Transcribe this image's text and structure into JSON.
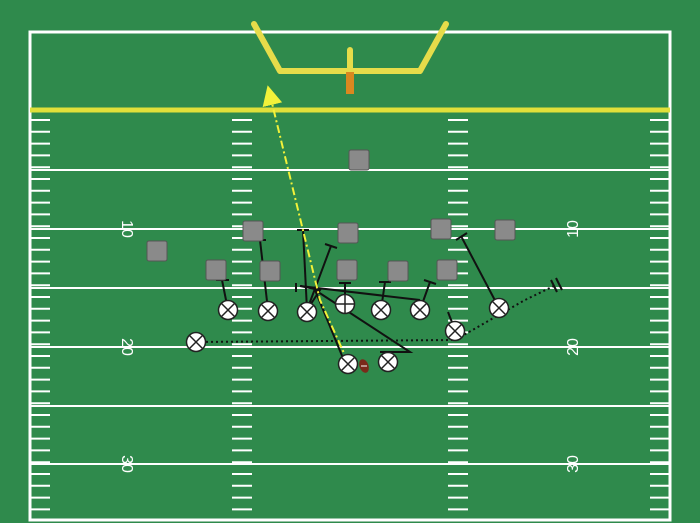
{
  "colors": {
    "field": "#2f8a4c",
    "lines": "#ffffff",
    "goal_line": "#e0e03a",
    "goalpost": "#e6dc4a",
    "offense_fill": "#ffffff",
    "defense_fill": "#8a8a8a",
    "ball": "#7a2a1a",
    "pass_route": "#f2f23a",
    "routes": "#111111"
  },
  "field": {
    "yard_labels": {
      "left_10": "10",
      "right_10": "10",
      "left_20": "20",
      "right_20": "20",
      "left_30": "30",
      "right_30": "30"
    }
  },
  "players": {
    "offense_symbol": "x-circle",
    "defense_symbol": "square",
    "offense_count": 11,
    "defense_count": 11
  },
  "ball": {
    "icon": "football-icon"
  }
}
